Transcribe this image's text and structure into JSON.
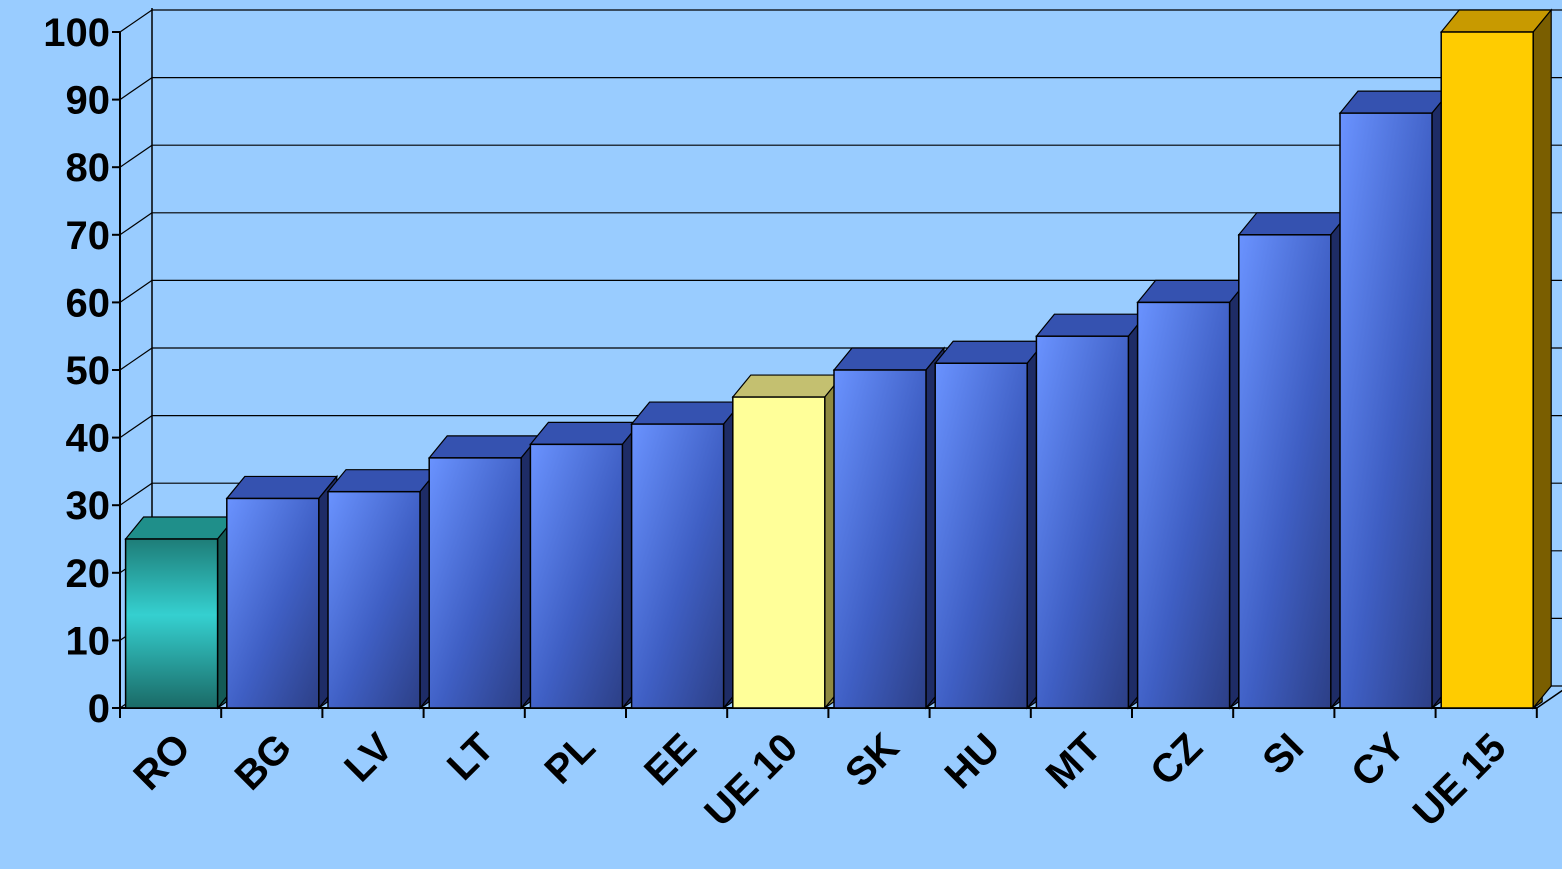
{
  "chart_data": {
    "type": "bar",
    "title": "",
    "xlabel": "",
    "ylabel": "",
    "ylim": [
      0,
      100
    ],
    "yticks": [
      "0",
      "10",
      "20",
      "30",
      "40",
      "50",
      "60",
      "70",
      "80",
      "90",
      "100"
    ],
    "categories": [
      "RO",
      "BG",
      "LV",
      "LT",
      "PL",
      "EE",
      "UE 10",
      "SK",
      "HU",
      "MT",
      "CZ",
      "SI",
      "CY",
      "UE 15"
    ],
    "values": [
      25,
      31,
      32,
      37,
      39,
      42,
      46,
      50,
      51,
      55,
      60,
      70,
      88,
      100
    ],
    "grid": true,
    "legend": "none",
    "colors": {
      "background": "#99ccff",
      "default_bar": "#4a6fe0",
      "RO": "#2fb8b8",
      "UE 10": "#ffff99",
      "UE 15": "#ffcc00"
    }
  }
}
